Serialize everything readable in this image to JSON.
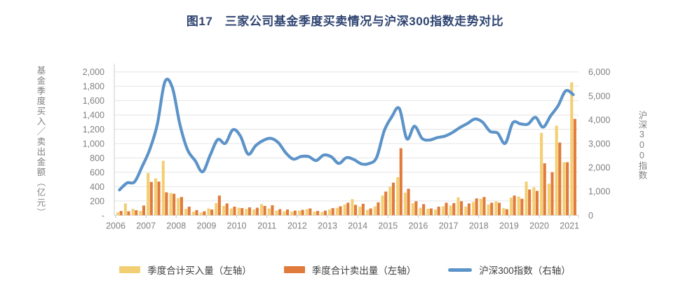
{
  "title": "图17　三家公司基金季度买卖情况与沪深300指数走势对比",
  "colors": {
    "buy_bar": "#F3CF73",
    "sell_bar": "#E17B3B",
    "index_line": "#5C93C8",
    "title_text": "#2E4471",
    "axis_text": "#7F7F7F",
    "gridline": "#E4E4E4",
    "axis_line": "#CBCBCB"
  },
  "chart_data": {
    "type": "bar",
    "overlay": "line",
    "grid": "horizontal",
    "legend_position": "bottom",
    "x_year_labels": [
      "2006",
      "2007",
      "2008",
      "2009",
      "2010",
      "2011",
      "2012",
      "2013",
      "2014",
      "2015",
      "2016",
      "2017",
      "2018",
      "2019",
      "2020",
      "2021"
    ],
    "quarters": [
      "2006Q1",
      "2006Q2",
      "2006Q3",
      "2006Q4",
      "2007Q1",
      "2007Q2",
      "2007Q3",
      "2007Q4",
      "2008Q1",
      "2008Q2",
      "2008Q3",
      "2008Q4",
      "2009Q1",
      "2009Q2",
      "2009Q3",
      "2009Q4",
      "2010Q1",
      "2010Q2",
      "2010Q3",
      "2010Q4",
      "2011Q1",
      "2011Q2",
      "2011Q3",
      "2011Q4",
      "2012Q1",
      "2012Q2",
      "2012Q3",
      "2012Q4",
      "2013Q1",
      "2013Q2",
      "2013Q3",
      "2013Q4",
      "2014Q1",
      "2014Q2",
      "2014Q3",
      "2014Q4",
      "2015Q1",
      "2015Q2",
      "2015Q3",
      "2015Q4",
      "2016Q1",
      "2016Q2",
      "2016Q3",
      "2016Q4",
      "2017Q1",
      "2017Q2",
      "2017Q3",
      "2017Q4",
      "2018Q1",
      "2018Q2",
      "2018Q3",
      "2018Q4",
      "2019Q1",
      "2019Q2",
      "2019Q3",
      "2019Q4",
      "2020Q1",
      "2020Q2",
      "2020Q3",
      "2020Q4",
      "2021Q1"
    ],
    "left_axis": {
      "title": "基金季度买入／卖出金额（亿元）",
      "min": 0,
      "max": 2000,
      "step": 200,
      "zero_label": "-"
    },
    "right_axis": {
      "title": "沪深300指数",
      "min": 0,
      "max": 6000,
      "step": 1000,
      "zero_label": "0"
    },
    "series": [
      {
        "name": "季度合计买入量（左轴）",
        "type": "bar",
        "axis": "left",
        "color": "#F3CF73",
        "values": [
          40,
          165,
          90,
          60,
          590,
          515,
          760,
          310,
          240,
          90,
          50,
          35,
          95,
          170,
          130,
          95,
          105,
          90,
          80,
          155,
          95,
          65,
          55,
          50,
          65,
          85,
          50,
          45,
          80,
          105,
          150,
          225,
          120,
          75,
          125,
          275,
          400,
          530,
          315,
          170,
          105,
          90,
          80,
          125,
          135,
          250,
          120,
          185,
          230,
          150,
          195,
          100,
          245,
          260,
          470,
          390,
          1150,
          440,
          1250,
          740,
          1855
        ]
      },
      {
        "name": "季度合计卖出量（左轴）",
        "type": "bar",
        "axis": "left",
        "color": "#E17B3B",
        "values": [
          60,
          55,
          70,
          135,
          465,
          470,
          320,
          300,
          255,
          120,
          72,
          55,
          80,
          275,
          165,
          120,
          100,
          110,
          105,
          130,
          140,
          85,
          80,
          65,
          75,
          95,
          60,
          65,
          100,
          125,
          175,
          145,
          160,
          95,
          180,
          330,
          455,
          935,
          370,
          195,
          155,
          95,
          120,
          175,
          170,
          195,
          165,
          235,
          255,
          175,
          175,
          85,
          275,
          230,
          360,
          340,
          725,
          600,
          1015,
          740,
          1345
        ]
      },
      {
        "name": "沪深300指数（右轴）",
        "type": "line",
        "axis": "right",
        "color": "#5C93C8",
        "values": [
          1060,
          1350,
          1400,
          2040,
          2750,
          3800,
          5580,
          5340,
          3790,
          2740,
          2290,
          1820,
          2520,
          3170,
          3010,
          3580,
          3310,
          2560,
          2910,
          3130,
          3220,
          3040,
          2610,
          2350,
          2460,
          2460,
          2290,
          2520,
          2450,
          2170,
          2410,
          2330,
          2150,
          2165,
          2420,
          3530,
          4120,
          4470,
          3200,
          3730,
          3220,
          3150,
          3250,
          3310,
          3460,
          3670,
          3840,
          4030,
          3900,
          3510,
          3440,
          3010,
          3870,
          3825,
          3815,
          4100,
          3690,
          4160,
          4590,
          5210,
          5050
        ]
      }
    ]
  }
}
